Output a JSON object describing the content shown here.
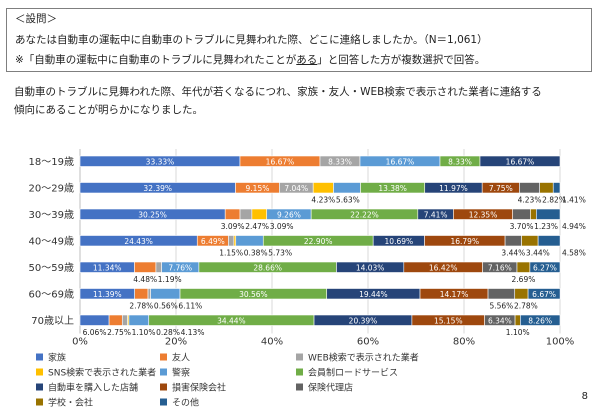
{
  "question_box": {
    "heading": "＜設問＞",
    "question": "あなたは自動車の運転中に自動車のトラブルに見舞われた際、どこに連絡しましたか。（N＝1,061）",
    "note_before": "※「自動車の運転中に自動車のトラブルに見舞われたことが",
    "note_underlined": "ある",
    "note_after": "」と回答した方が複数選択で回答。"
  },
  "summary": {
    "line1": "自動車のトラブルに見舞われた際、年代が若くなるにつれ、家族・友人・WEB検索で表示された業者に連絡する",
    "line2": "傾向にあることが明らかになりました。"
  },
  "page_number": "8",
  "colors": {
    "family": "#4472C4",
    "friend": "#ED7D31",
    "web": "#A5A5A5",
    "sns": "#FFC000",
    "police": "#5B9BD5",
    "road_service": "#70AD47",
    "dealer": "#264478",
    "insurer": "#9E480E",
    "agent": "#636363",
    "school": "#997300",
    "other": "#255E91"
  },
  "chart_data": {
    "type": "bar",
    "orientation": "horizontal",
    "stacked": "percent",
    "categories": [
      "18～19歳",
      "20～29歳",
      "30～39歳",
      "40～49歳",
      "50～59歳",
      "60～69歳",
      "70歳以上"
    ],
    "xlim": [
      0,
      100
    ],
    "xticks": [
      "0%",
      "20%",
      "40%",
      "60%",
      "80%",
      "100%"
    ],
    "grid": true,
    "legend": "bottom",
    "series": [
      {
        "name": "家族",
        "color": "#4472C4",
        "values": [
          33.33,
          32.39,
          30.25,
          24.43,
          11.34,
          11.39,
          6.06
        ]
      },
      {
        "name": "友人",
        "color": "#ED7D31",
        "values": [
          16.67,
          9.15,
          3.09,
          6.49,
          4.48,
          2.78,
          2.75
        ]
      },
      {
        "name": "WEB検索で表示された業者",
        "color": "#A5A5A5",
        "values": [
          8.33,
          7.04,
          2.47,
          1.15,
          1.19,
          0.56,
          1.1
        ]
      },
      {
        "name": "SNS検索で表示された業者",
        "color": "#FFC000",
        "values": [
          0,
          4.23,
          3.09,
          0.38,
          0,
          0,
          0.28
        ]
      },
      {
        "name": "警察",
        "color": "#5B9BD5",
        "values": [
          16.67,
          5.63,
          9.26,
          5.73,
          7.76,
          6.11,
          4.13
        ]
      },
      {
        "name": "会員制ロードサービス",
        "color": "#70AD47",
        "values": [
          8.33,
          13.38,
          22.22,
          22.9,
          28.66,
          30.56,
          34.44
        ]
      },
      {
        "name": "自動車を購入した店舗",
        "color": "#264478",
        "values": [
          16.67,
          11.97,
          7.41,
          10.69,
          14.03,
          19.44,
          20.39
        ]
      },
      {
        "name": "損害保険会社",
        "color": "#9E480E",
        "values": [
          0,
          7.75,
          12.35,
          16.79,
          16.42,
          14.17,
          15.15
        ]
      },
      {
        "name": "保険代理店",
        "color": "#636363",
        "values": [
          0,
          4.23,
          3.7,
          3.44,
          7.16,
          5.56,
          6.34
        ]
      },
      {
        "name": "学校・会社",
        "color": "#997300",
        "values": [
          0,
          2.82,
          1.23,
          3.44,
          2.69,
          2.78,
          1.1
        ]
      },
      {
        "name": "その他",
        "color": "#255E91",
        "values": [
          0,
          1.41,
          4.94,
          4.58,
          6.27,
          6.67,
          8.26
        ]
      }
    ]
  }
}
